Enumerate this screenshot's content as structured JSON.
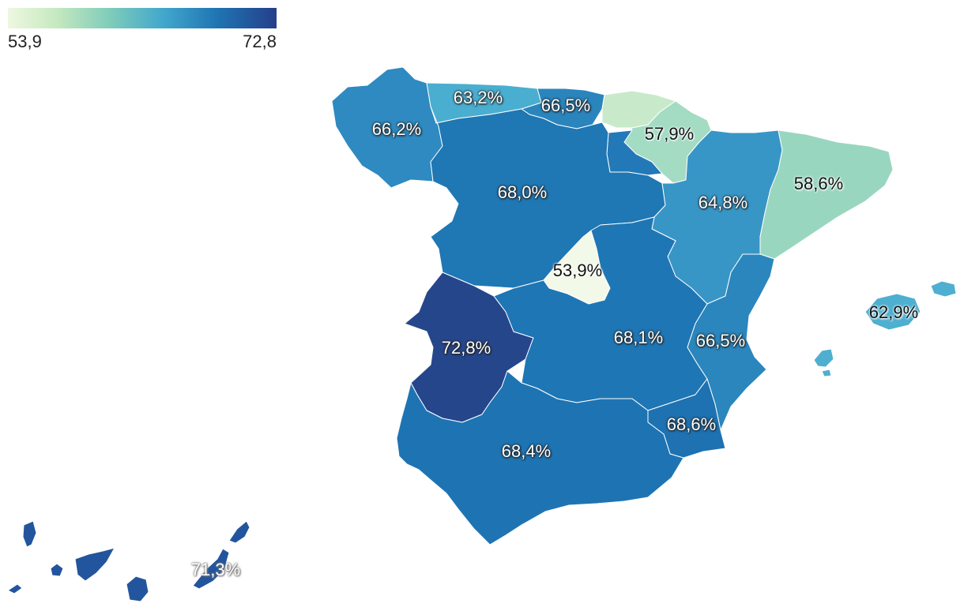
{
  "legend": {
    "min_label": "53,9",
    "max_label": "72,8",
    "min": 53.9,
    "max": 72.8,
    "colors": [
      "#edf8e0",
      "#c6e9c0",
      "#7fccba",
      "#41a7cc",
      "#1f74b3",
      "#253f8a"
    ]
  },
  "regions": [
    {
      "key": "galicia",
      "value": 66.2,
      "label": "66,2%",
      "color": "#2e8ac0"
    },
    {
      "key": "asturias",
      "value": 63.2,
      "label": "63,2%",
      "color": "#4aaed0"
    },
    {
      "key": "cantabria",
      "value": 66.5,
      "label": "66,5%",
      "color": "#2a85bd"
    },
    {
      "key": "pais_vasco",
      "value": null,
      "label": "",
      "color": "#c8eacb"
    },
    {
      "key": "navarra",
      "value": 57.9,
      "label": "57,9%",
      "color": "#a3dbc3"
    },
    {
      "key": "la_rioja",
      "value": null,
      "label": "",
      "color": "#2379b7"
    },
    {
      "key": "castilla_leon",
      "value": 68.0,
      "label": "68,0%",
      "color": "#1f77b4"
    },
    {
      "key": "aragon",
      "value": 64.8,
      "label": "64,8%",
      "color": "#3896c6"
    },
    {
      "key": "cataluna",
      "value": 58.6,
      "label": "58,6%",
      "color": "#99d6c0"
    },
    {
      "key": "madrid",
      "value": 53.9,
      "label": "53,9%",
      "color": "#f2f9e8"
    },
    {
      "key": "extremadura",
      "value": 72.8,
      "label": "72,8%",
      "color": "#26468c"
    },
    {
      "key": "castilla_la_mancha",
      "value": 68.1,
      "label": "68,1%",
      "color": "#1f76b4"
    },
    {
      "key": "comunidad_valenciana",
      "value": 66.5,
      "label": "66,5%",
      "color": "#2a86bd"
    },
    {
      "key": "murcia",
      "value": 68.6,
      "label": "68,6%",
      "color": "#1e72b1"
    },
    {
      "key": "andalucia",
      "value": 68.4,
      "label": "68,4%",
      "color": "#1e74b3"
    },
    {
      "key": "baleares",
      "value": 62.9,
      "label": "62,9%",
      "color": "#4eafd0"
    },
    {
      "key": "canarias",
      "value": 71.3,
      "label": "71,3%",
      "color": "#22559d"
    }
  ]
}
